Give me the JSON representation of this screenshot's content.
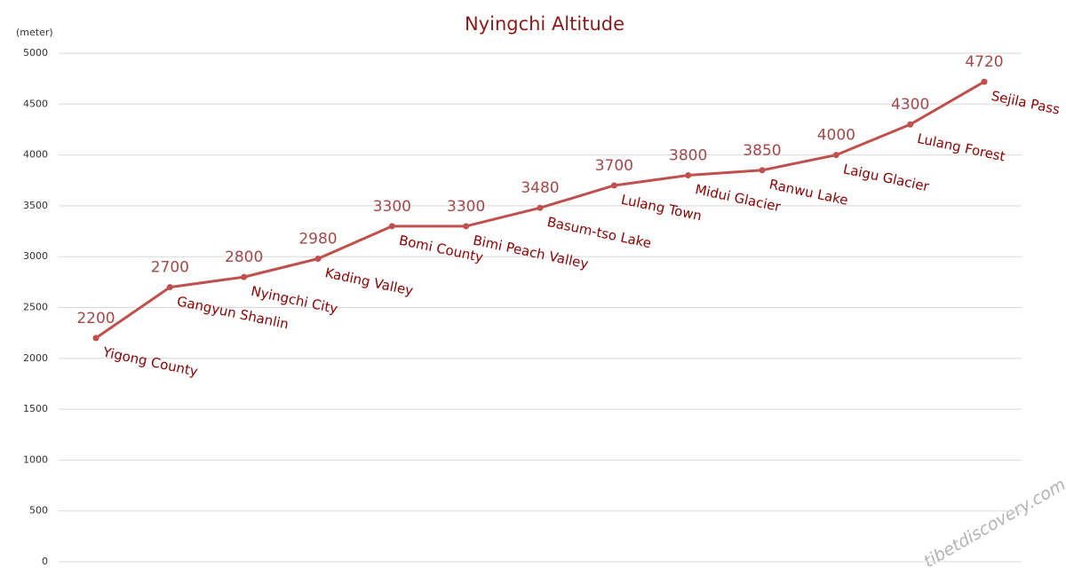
{
  "chart_data": {
    "type": "line",
    "title": "Nyingchi Altitude",
    "y_label": "(meter)",
    "categories": [
      "Yigong County",
      "Gangyun Shanlin",
      "Nyingchi City",
      "Kading Valley",
      "Bomi County",
      "Bimi Peach Valley",
      "Basum-tso Lake",
      "Lulang Town",
      "Midui Glacier",
      "Ranwu Lake",
      "Laigu Glacier",
      "Lulang Forest",
      "Sejila Pass"
    ],
    "values": [
      2200,
      2700,
      2800,
      2980,
      3300,
      3300,
      3480,
      3700,
      3800,
      3850,
      4000,
      4300,
      4720
    ],
    "color": "#c0504d",
    "ylim": [
      0,
      5000
    ],
    "yticks": [
      0,
      500,
      1000,
      1500,
      2000,
      2500,
      3000,
      3500,
      4000,
      4500,
      5000
    ],
    "grid": true,
    "watermark": "tibetdiscovery.com"
  }
}
